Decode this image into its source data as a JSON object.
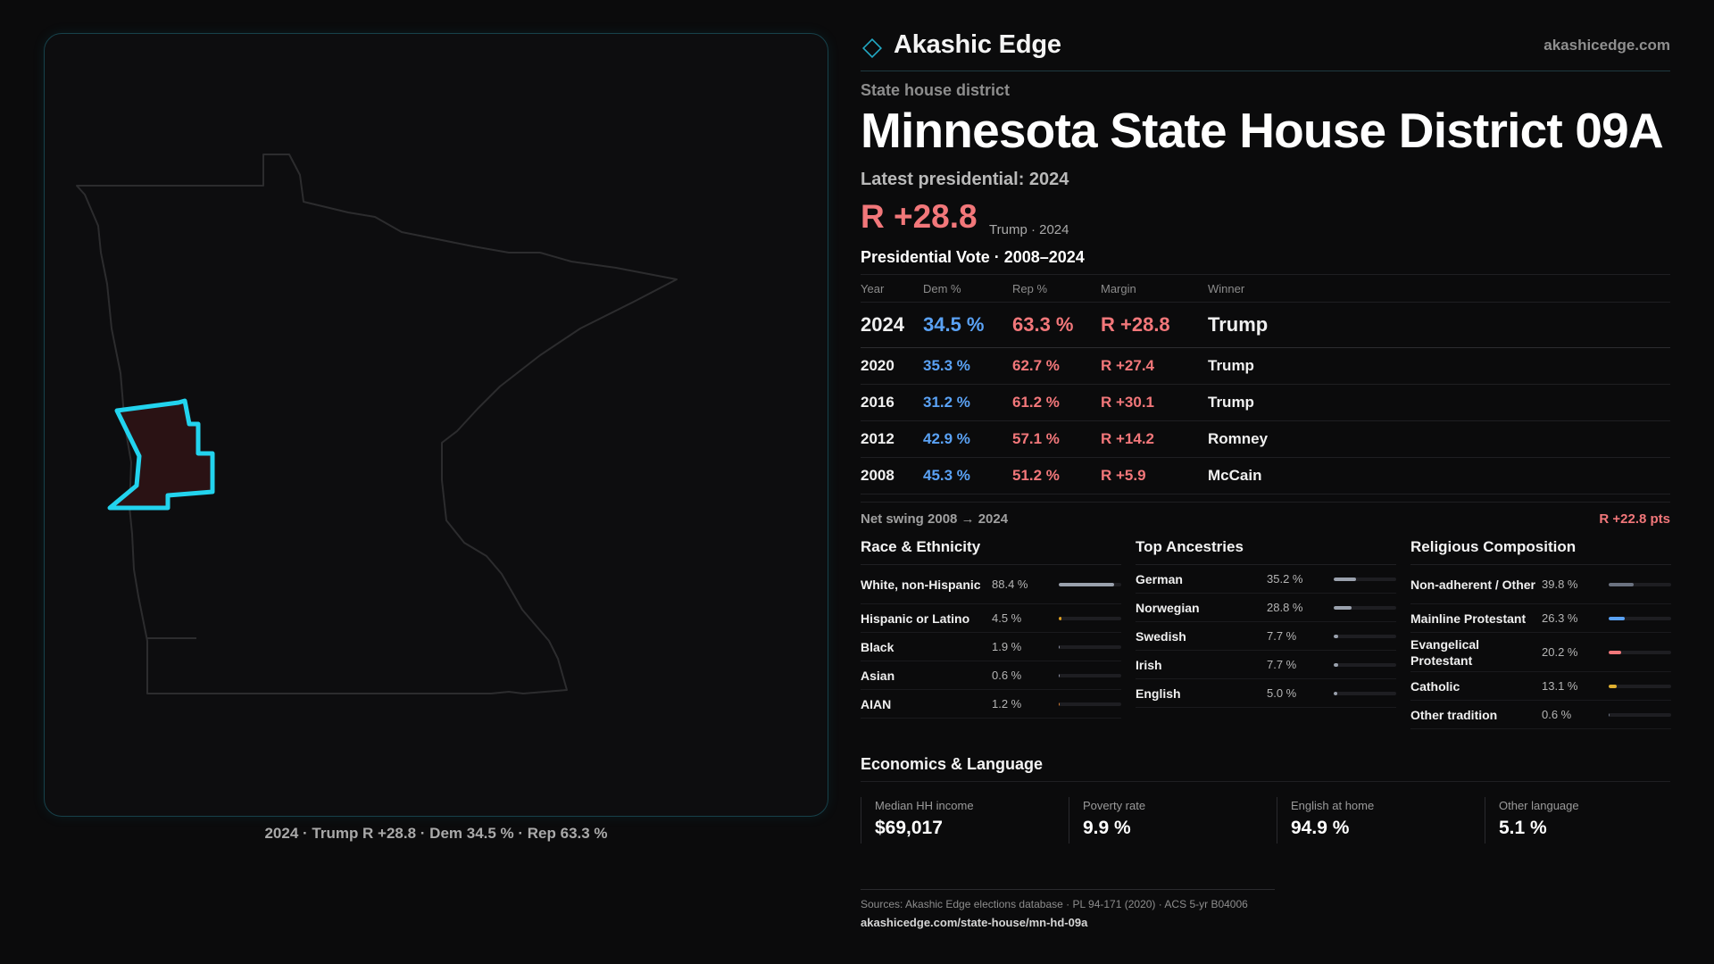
{
  "brand": {
    "name": "Akashic Edge",
    "url": "akashicedge.com"
  },
  "page": {
    "kicker": "State house district",
    "title": "Minnesota State House District 09A",
    "latest_label": "Latest presidential: 2024",
    "latest_margin": "R +28.8",
    "latest_sub": "Trump · 2024",
    "vote_title": "Presidential Vote · 2008–2024"
  },
  "map": {
    "caption": "2024 · Trump R +28.8 · Dem 34.5 % · Rep 63.3 %",
    "colors": {
      "outline": "#2c2c2e",
      "district_stroke": "#22d3ee",
      "district_fill": "#2a1214"
    }
  },
  "vote_table": {
    "headers": {
      "year": "Year",
      "dem": "Dem %",
      "rep": "Rep %",
      "margin": "Margin",
      "winner": "Winner"
    },
    "rows": [
      {
        "year": "2024",
        "dem": "34.5 %",
        "rep": "63.3 %",
        "margin": "R +28.8",
        "winner": "Trump"
      },
      {
        "year": "2020",
        "dem": "35.3 %",
        "rep": "62.7 %",
        "margin": "R +27.4",
        "winner": "Trump"
      },
      {
        "year": "2016",
        "dem": "31.2 %",
        "rep": "61.2 %",
        "margin": "R +30.1",
        "winner": "Trump"
      },
      {
        "year": "2012",
        "dem": "42.9 %",
        "rep": "57.1 %",
        "margin": "R +14.2",
        "winner": "Romney"
      },
      {
        "year": "2008",
        "dem": "45.3 %",
        "rep": "51.2 %",
        "margin": "R +5.9",
        "winner": "McCain"
      }
    ]
  },
  "swing": {
    "label": "Net swing 2008 → 2024",
    "value": "R +22.8 pts"
  },
  "race": {
    "title": "Race & Ethnicity",
    "items": [
      {
        "label": "White, non-Hispanic",
        "value": "88.4 %",
        "pct": 88.4,
        "color": "#9aa1ad"
      },
      {
        "label": "Hispanic or Latino",
        "value": "4.5 %",
        "pct": 4.5,
        "color": "#e0a020"
      },
      {
        "label": "Black",
        "value": "1.9 %",
        "pct": 1.9,
        "color": "#8a8fa0"
      },
      {
        "label": "Asian",
        "value": "0.6 %",
        "pct": 0.6,
        "color": "#8a8fa0"
      },
      {
        "label": "AIAN",
        "value": "1.2 %",
        "pct": 1.2,
        "color": "#d07a30"
      }
    ]
  },
  "ancestry": {
    "title": "Top Ancestries",
    "items": [
      {
        "label": "German",
        "value": "35.2 %",
        "pct": 35.2,
        "color": "#9aa1ad"
      },
      {
        "label": "Norwegian",
        "value": "28.8 %",
        "pct": 28.8,
        "color": "#9aa1ad"
      },
      {
        "label": "Swedish",
        "value": "7.7 %",
        "pct": 7.7,
        "color": "#9aa1ad"
      },
      {
        "label": "Irish",
        "value": "7.7 %",
        "pct": 7.7,
        "color": "#9aa1ad"
      },
      {
        "label": "English",
        "value": "5.0 %",
        "pct": 5.0,
        "color": "#9aa1ad"
      }
    ]
  },
  "religion": {
    "title": "Religious Composition",
    "items": [
      {
        "label": "Non-adherent / Other",
        "value": "39.8 %",
        "pct": 39.8,
        "color": "#6b7280"
      },
      {
        "label": "Mainline Protestant",
        "value": "26.3 %",
        "pct": 26.3,
        "color": "#5aa2f5"
      },
      {
        "label": "Evangelical Protestant",
        "value": "20.2 %",
        "pct": 20.2,
        "color": "#f2777a"
      },
      {
        "label": "Catholic",
        "value": "13.1 %",
        "pct": 13.1,
        "color": "#e0b030"
      },
      {
        "label": "Other tradition",
        "value": "0.6 %",
        "pct": 0.6,
        "color": "#6b7280"
      }
    ]
  },
  "economics": {
    "title": "Economics & Language",
    "items": [
      {
        "label": "Median HH income",
        "value": "$69,017"
      },
      {
        "label": "Poverty rate",
        "value": "9.9 %"
      },
      {
        "label": "English at home",
        "value": "94.9 %"
      },
      {
        "label": "Other language",
        "value": "5.1 %"
      }
    ]
  },
  "footer": {
    "sources": "Sources: Akashic Edge elections database · PL 94-171 (2020) · ACS 5-yr B04006",
    "url": "akashicedge.com/state-house/mn-hd-09a"
  }
}
